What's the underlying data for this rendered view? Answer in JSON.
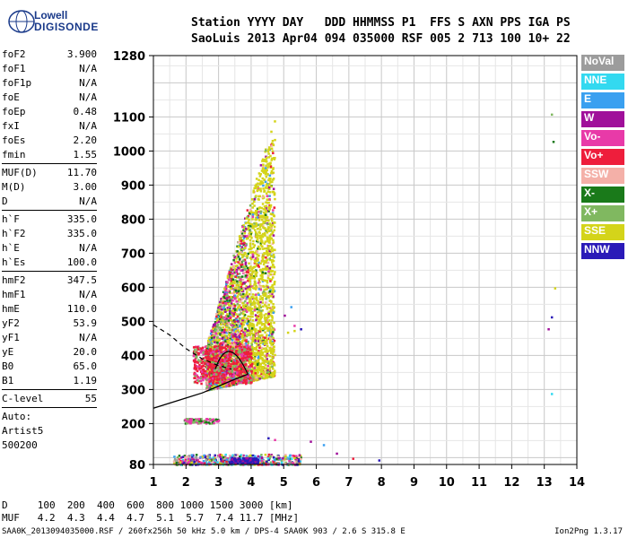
{
  "logo": {
    "line1": "Lowell",
    "line2": "DIGISONDE"
  },
  "header": {
    "line1": "Station YYYY DAY   DDD HHMMSS P1  FFS S AXN PPS IGA PS",
    "line2": "SaoLuis 2013 Apr04 094 035000 RSF 005 2 713 100 10+ 22"
  },
  "params": [
    [
      {
        "k": "foF2",
        "v": "3.900"
      },
      {
        "k": "foF1",
        "v": "N/A"
      },
      {
        "k": "foF1p",
        "v": "N/A"
      },
      {
        "k": "foE",
        "v": "N/A"
      },
      {
        "k": "foEp",
        "v": "0.48"
      },
      {
        "k": "fxI",
        "v": "N/A"
      },
      {
        "k": "foEs",
        "v": "2.20"
      },
      {
        "k": "fmin",
        "v": "1.55"
      }
    ],
    [
      {
        "k": "MUF(D)",
        "v": "11.70"
      },
      {
        "k": "M(D)",
        "v": "3.00"
      },
      {
        "k": "D",
        "v": "N/A"
      }
    ],
    [
      {
        "k": "h`F",
        "v": "335.0"
      },
      {
        "k": "h`F2",
        "v": "335.0"
      },
      {
        "k": "h`E",
        "v": "N/A"
      },
      {
        "k": "h`Es",
        "v": "100.0"
      }
    ],
    [
      {
        "k": "hmF2",
        "v": "347.5"
      },
      {
        "k": "hmF1",
        "v": "N/A"
      },
      {
        "k": "hmE",
        "v": "110.0"
      },
      {
        "k": "yF2",
        "v": "53.9"
      },
      {
        "k": "yF1",
        "v": "N/A"
      },
      {
        "k": "yE",
        "v": "20.0"
      },
      {
        "k": "B0",
        "v": "65.0"
      },
      {
        "k": "B1",
        "v": "1.19"
      }
    ],
    [
      {
        "k": "C-level",
        "v": "55"
      }
    ],
    [
      {
        "k": "Auto:",
        "v": ""
      },
      {
        "k": "Artist5",
        "v": ""
      },
      {
        "k": "500200",
        "v": ""
      }
    ]
  ],
  "legend": [
    {
      "label": "NoVal",
      "color": "#9c9c9c"
    },
    {
      "label": "NNE",
      "color": "#33d9f0"
    },
    {
      "label": "E",
      "color": "#3aa0f0"
    },
    {
      "label": "W",
      "color": "#a0109a"
    },
    {
      "label": "Vo-",
      "color": "#e83aa8"
    },
    {
      "label": "Vo+",
      "color": "#ee1e3c"
    },
    {
      "label": "SSW",
      "color": "#f4b0a8"
    },
    {
      "label": "X-",
      "color": "#1a7a1a"
    },
    {
      "label": "X+",
      "color": "#80b860"
    },
    {
      "label": "SSE",
      "color": "#d4d41a"
    },
    {
      "label": "NNW",
      "color": "#2a1ab8"
    }
  ],
  "bottom": {
    "dist_line": "D     100  200  400  600  800 1000 1500 3000 [km]",
    "muf_line": "MUF   4.2  4.3  4.4  4.7  5.1  5.7  7.4 11.7 [MHz]"
  },
  "footer": {
    "left": "SAA0K_2013094035000.RSF / 260fx256h 50 kHz 5.0 km / DPS-4 SAA0K 903 / 2.6 S 315.8 E",
    "right": "Ion2Png 1.3.17"
  },
  "chart_data": {
    "type": "scatter",
    "x_ticks": [
      1,
      2,
      3,
      4,
      5,
      6,
      7,
      8,
      9,
      10,
      11,
      12,
      13,
      14
    ],
    "y_ticks": [
      80,
      200,
      300,
      400,
      500,
      600,
      700,
      800,
      900,
      1000,
      1100,
      1280
    ],
    "xlim": [
      1,
      14
    ],
    "ylim": [
      80,
      1280
    ],
    "grid": true,
    "clusters": [
      {
        "name": "F-layer trace",
        "xrange": [
          2.6,
          4.8
        ],
        "yrange": [
          300,
          1100
        ]
      },
      {
        "name": "Es trace",
        "xrange": [
          1.5,
          5.5
        ],
        "yrange": [
          80,
          110
        ]
      },
      {
        "name": "Low trace",
        "xrange": [
          1.8,
          2.6
        ],
        "yrange": [
          200,
          215
        ]
      }
    ],
    "profile_line": [
      [
        1,
        245
      ],
      [
        2,
        275
      ],
      [
        2.5,
        290
      ],
      [
        3,
        310
      ],
      [
        3.5,
        330
      ],
      [
        3.9,
        345
      ]
    ],
    "dashed_line": [
      [
        1,
        490
      ],
      [
        1.5,
        460
      ],
      [
        2,
        420
      ],
      [
        2.5,
        390
      ],
      [
        3,
        370
      ],
      [
        3.4,
        360
      ]
    ]
  }
}
